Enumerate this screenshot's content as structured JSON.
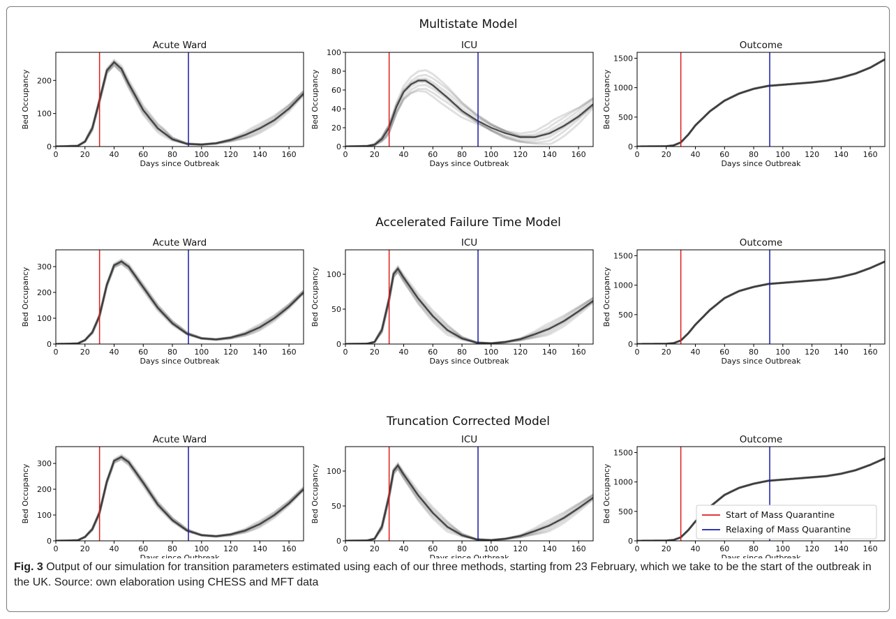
{
  "figure": {
    "caption_label": "Fig. 3",
    "caption_text": " Output of our simulation for transition parameters estimated using each of our three methods, starting from 23 February, which we take to be the start of the outbreak in the UK. Source: own elaboration using CHESS and MFT data"
  },
  "legend": [
    {
      "label": "Start of Mass Quarantine",
      "color": "#e11b1b"
    },
    {
      "label": "Relaxing of Mass Quarantine",
      "color": "#1a1aa6"
    }
  ],
  "chart_data": [
    {
      "type": "line",
      "row_title": "Multistate Model",
      "panels": [
        {
          "title": "Acute Ward",
          "xlabel": "Days since Outbreak",
          "ylabel": "Bed Occupancy",
          "xlim": [
            0,
            170
          ],
          "ylim": [
            0,
            285
          ],
          "yticks": [
            0,
            100,
            200
          ],
          "xticks": [
            0,
            20,
            40,
            60,
            80,
            100,
            120,
            140,
            160
          ],
          "x": [
            0,
            15,
            20,
            25,
            30,
            35,
            40,
            45,
            50,
            60,
            70,
            80,
            90,
            100,
            110,
            120,
            130,
            140,
            150,
            160,
            170
          ],
          "y": [
            0,
            2,
            15,
            55,
            140,
            230,
            255,
            235,
            190,
            110,
            55,
            22,
            8,
            6,
            10,
            20,
            35,
            55,
            80,
            115,
            160
          ],
          "spread": 14
        },
        {
          "title": "ICU",
          "xlabel": "Days since Outbreak",
          "ylabel": "Bed Occupancy",
          "xlim": [
            0,
            170
          ],
          "ylim": [
            0,
            100
          ],
          "yticks": [
            0,
            20,
            40,
            60,
            80,
            100
          ],
          "xticks": [
            0,
            20,
            40,
            60,
            80,
            100,
            120,
            140,
            160
          ],
          "x": [
            0,
            15,
            20,
            25,
            30,
            35,
            40,
            45,
            50,
            55,
            60,
            70,
            80,
            90,
            100,
            110,
            120,
            130,
            140,
            150,
            160,
            170
          ],
          "y": [
            0,
            0.5,
            2,
            8,
            20,
            42,
            58,
            66,
            70,
            70,
            65,
            52,
            38,
            28,
            20,
            14,
            10,
            10,
            14,
            22,
            32,
            45
          ],
          "spread": 12
        },
        {
          "title": "Outcome",
          "xlabel": "Days since Outbreak",
          "ylabel": "Bed Occupancy",
          "xlim": [
            0,
            170
          ],
          "ylim": [
            0,
            1600
          ],
          "yticks": [
            0,
            500,
            1000,
            1500
          ],
          "xticks": [
            0,
            20,
            40,
            60,
            80,
            100,
            120,
            140,
            160
          ],
          "x": [
            0,
            20,
            25,
            30,
            35,
            40,
            50,
            60,
            70,
            80,
            90,
            100,
            110,
            120,
            130,
            140,
            150,
            160,
            170
          ],
          "y": [
            0,
            5,
            20,
            70,
            200,
            360,
            600,
            780,
            900,
            980,
            1030,
            1050,
            1070,
            1090,
            1120,
            1170,
            1240,
            1340,
            1480
          ],
          "spread": 6
        }
      ]
    },
    {
      "type": "line",
      "row_title": "Accelerated Failure Time Model",
      "panels": [
        {
          "title": "Acute Ward",
          "xlabel": "Days since Outbreak",
          "ylabel": "Bed Occupancy",
          "xlim": [
            0,
            170
          ],
          "ylim": [
            0,
            365
          ],
          "yticks": [
            0,
            100,
            200,
            300
          ],
          "xticks": [
            0,
            20,
            40,
            60,
            80,
            100,
            120,
            140,
            160
          ],
          "x": [
            0,
            15,
            20,
            25,
            30,
            35,
            40,
            45,
            50,
            60,
            70,
            80,
            90,
            100,
            110,
            120,
            130,
            140,
            150,
            160,
            170
          ],
          "y": [
            0,
            2,
            15,
            45,
            110,
            230,
            305,
            320,
            300,
            220,
            140,
            80,
            40,
            22,
            18,
            25,
            40,
            65,
            100,
            145,
            200
          ],
          "spread": 12
        },
        {
          "title": "ICU",
          "xlabel": "Days since Outbreak",
          "ylabel": "Bed Occupancy",
          "xlim": [
            0,
            170
          ],
          "ylim": [
            0,
            135
          ],
          "yticks": [
            0,
            50,
            100
          ],
          "xticks": [
            0,
            20,
            40,
            60,
            80,
            100,
            120,
            140,
            160
          ],
          "x": [
            0,
            15,
            20,
            25,
            30,
            33,
            36,
            40,
            45,
            50,
            60,
            70,
            80,
            90,
            100,
            110,
            120,
            130,
            140,
            150,
            160,
            170
          ],
          "y": [
            0,
            0.5,
            3,
            20,
            65,
            100,
            108,
            95,
            80,
            65,
            40,
            20,
            8,
            2,
            1,
            3,
            7,
            14,
            22,
            33,
            47,
            62
          ],
          "spread": 8
        },
        {
          "title": "Outcome",
          "xlabel": "Days since Outbreak",
          "ylabel": "Bed Occupancy",
          "xlim": [
            0,
            170
          ],
          "ylim": [
            0,
            1600
          ],
          "yticks": [
            0,
            500,
            1000,
            1500
          ],
          "xticks": [
            0,
            20,
            40,
            60,
            80,
            100,
            120,
            140,
            160
          ],
          "x": [
            0,
            20,
            25,
            30,
            35,
            40,
            50,
            60,
            70,
            80,
            90,
            100,
            110,
            120,
            130,
            140,
            150,
            160,
            170
          ],
          "y": [
            0,
            3,
            15,
            60,
            180,
            330,
            580,
            780,
            900,
            970,
            1020,
            1040,
            1060,
            1080,
            1100,
            1140,
            1200,
            1290,
            1400
          ],
          "spread": 6
        }
      ]
    },
    {
      "type": "line",
      "row_title": "Truncation Corrected Model",
      "panels": [
        {
          "title": "Acute Ward",
          "xlabel": "Days since Outbreak",
          "ylabel": "Bed Occupancy",
          "xlim": [
            0,
            170
          ],
          "ylim": [
            0,
            365
          ],
          "yticks": [
            0,
            100,
            200,
            300
          ],
          "xticks": [
            0,
            20,
            40,
            60,
            80,
            100,
            120,
            140,
            160
          ],
          "x": [
            0,
            15,
            20,
            25,
            30,
            35,
            40,
            45,
            50,
            60,
            70,
            80,
            90,
            100,
            110,
            120,
            130,
            140,
            150,
            160,
            170
          ],
          "y": [
            0,
            2,
            15,
            45,
            110,
            230,
            310,
            325,
            305,
            225,
            140,
            80,
            40,
            22,
            18,
            25,
            40,
            65,
            100,
            145,
            200
          ],
          "spread": 12
        },
        {
          "title": "ICU",
          "xlabel": "Days since Outbreak",
          "ylabel": "Bed Occupancy",
          "xlim": [
            0,
            170
          ],
          "ylim": [
            0,
            135
          ],
          "yticks": [
            0,
            50,
            100
          ],
          "xticks": [
            0,
            20,
            40,
            60,
            80,
            100,
            120,
            140,
            160
          ],
          "x": [
            0,
            15,
            20,
            25,
            30,
            33,
            36,
            40,
            45,
            50,
            60,
            70,
            80,
            90,
            100,
            110,
            120,
            130,
            140,
            150,
            160,
            170
          ],
          "y": [
            0,
            0.5,
            3,
            20,
            65,
            100,
            108,
            95,
            80,
            65,
            40,
            20,
            8,
            2,
            1,
            3,
            7,
            14,
            22,
            33,
            47,
            62
          ],
          "spread": 8
        },
        {
          "title": "Outcome",
          "xlabel": "Days since Outbreak",
          "ylabel": "Bed Occupancy",
          "xlim": [
            0,
            170
          ],
          "ylim": [
            0,
            1600
          ],
          "yticks": [
            0,
            500,
            1000,
            1500
          ],
          "xticks": [
            0,
            20,
            40,
            60,
            80,
            100,
            120,
            140,
            160
          ],
          "x": [
            0,
            20,
            25,
            30,
            35,
            40,
            50,
            60,
            70,
            80,
            90,
            100,
            110,
            120,
            130,
            140,
            150,
            160,
            170
          ],
          "y": [
            0,
            3,
            15,
            60,
            180,
            330,
            580,
            780,
            900,
            970,
            1020,
            1040,
            1060,
            1080,
            1100,
            1140,
            1200,
            1290,
            1400
          ],
          "spread": 6
        }
      ]
    }
  ],
  "vlines": {
    "start_quarantine_day": 30,
    "relax_quarantine_day": 91
  }
}
